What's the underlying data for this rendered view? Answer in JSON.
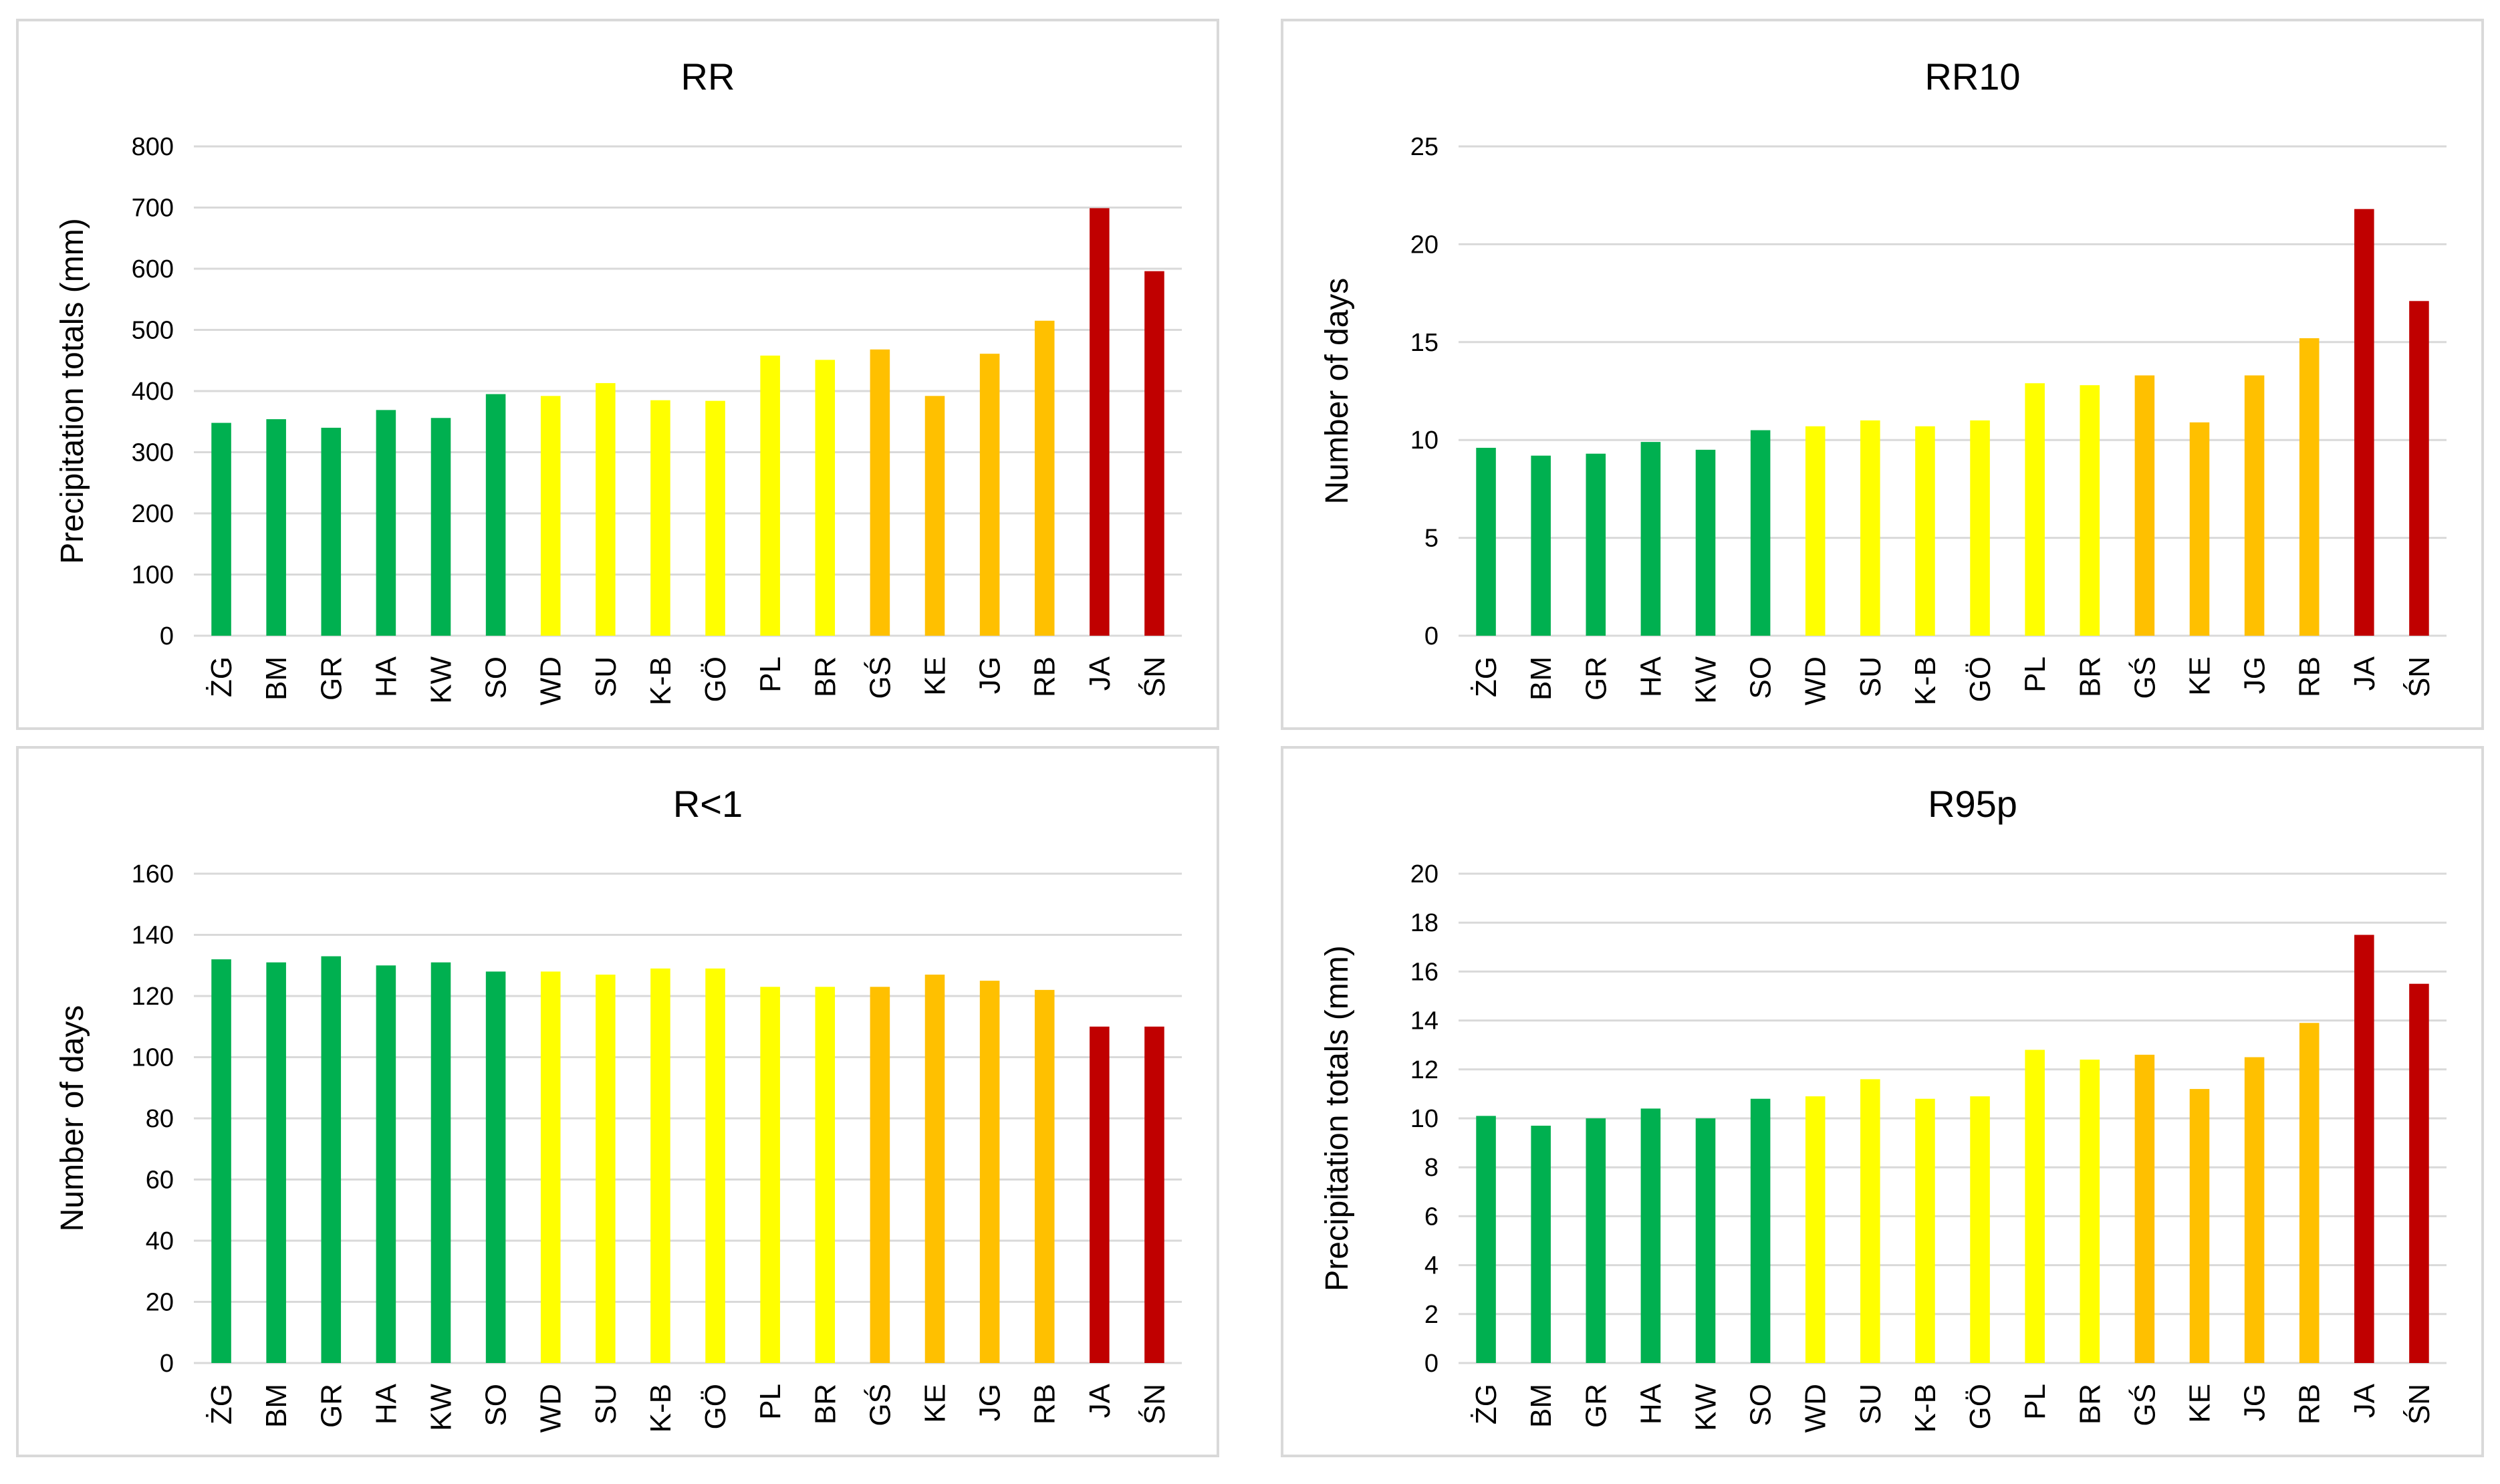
{
  "chart_data": [
    {
      "type": "bar",
      "title": "RR",
      "xlabel": "",
      "ylabel": "Precipitation totals (mm)",
      "ylim": [
        0,
        800
      ],
      "yticks": [
        0,
        100,
        200,
        300,
        400,
        500,
        600,
        700,
        800
      ],
      "ytick_labels": [
        "0",
        "100",
        "200",
        "300",
        "400",
        "500",
        "600",
        "700",
        "800"
      ],
      "categories": [
        "ŻG",
        "BM",
        "GR",
        "HA",
        "KW",
        "SO",
        "WD",
        "SU",
        "K-B",
        "GÖ",
        "PL",
        "BR",
        "GŚ",
        "KE",
        "JG",
        "RB",
        "JA",
        "ŚN"
      ],
      "values": [
        348,
        354,
        340,
        369,
        356,
        395,
        392,
        413,
        385,
        384,
        458,
        451,
        468,
        392,
        461,
        515,
        699,
        596
      ],
      "colors": [
        "#00b050",
        "#00b050",
        "#00b050",
        "#00b050",
        "#00b050",
        "#00b050",
        "#ffff00",
        "#ffff00",
        "#ffff00",
        "#ffff00",
        "#ffff00",
        "#ffff00",
        "#ffc000",
        "#ffc000",
        "#ffc000",
        "#ffc000",
        "#c00000",
        "#c00000"
      ]
    },
    {
      "type": "bar",
      "title": "RR10",
      "xlabel": "",
      "ylabel": "Number of days",
      "ylim": [
        0,
        25
      ],
      "yticks": [
        0,
        5,
        10,
        15,
        20,
        25
      ],
      "ytick_labels": [
        "0",
        "5",
        "10",
        "15",
        "20",
        "25"
      ],
      "categories": [
        "ŻG",
        "BM",
        "GR",
        "HA",
        "KW",
        "SO",
        "WD",
        "SU",
        "K-B",
        "GÖ",
        "PL",
        "BR",
        "GŚ",
        "KE",
        "JG",
        "RB",
        "JA",
        "ŚN"
      ],
      "values": [
        9.6,
        9.2,
        9.3,
        9.9,
        9.5,
        10.5,
        10.7,
        11.0,
        10.7,
        11.0,
        12.9,
        12.8,
        13.3,
        10.9,
        13.3,
        15.2,
        21.8,
        17.1
      ],
      "colors": [
        "#00b050",
        "#00b050",
        "#00b050",
        "#00b050",
        "#00b050",
        "#00b050",
        "#ffff00",
        "#ffff00",
        "#ffff00",
        "#ffff00",
        "#ffff00",
        "#ffff00",
        "#ffc000",
        "#ffc000",
        "#ffc000",
        "#ffc000",
        "#c00000",
        "#c00000"
      ]
    },
    {
      "type": "bar",
      "title": "R<1",
      "xlabel": "",
      "ylabel": "Number of days",
      "ylim": [
        0,
        160
      ],
      "yticks": [
        0,
        20,
        40,
        60,
        80,
        100,
        120,
        140,
        160
      ],
      "ytick_labels": [
        "0",
        "20",
        "40",
        "60",
        "80",
        "100",
        "120",
        "140",
        "160"
      ],
      "categories": [
        "ŻG",
        "BM",
        "GR",
        "HA",
        "KW",
        "SO",
        "WD",
        "SU",
        "K-B",
        "GÖ",
        "PL",
        "BR",
        "GŚ",
        "KE",
        "JG",
        "RB",
        "JA",
        "ŚN"
      ],
      "values": [
        132,
        131,
        133,
        130,
        131,
        128,
        128,
        127,
        129,
        129,
        123,
        123,
        123,
        127,
        125,
        122,
        110,
        110
      ],
      "colors": [
        "#00b050",
        "#00b050",
        "#00b050",
        "#00b050",
        "#00b050",
        "#00b050",
        "#ffff00",
        "#ffff00",
        "#ffff00",
        "#ffff00",
        "#ffff00",
        "#ffff00",
        "#ffc000",
        "#ffc000",
        "#ffc000",
        "#ffc000",
        "#c00000",
        "#c00000"
      ]
    },
    {
      "type": "bar",
      "title": "R95p",
      "xlabel": "",
      "ylabel": "Precipitation totals (mm)",
      "ylim": [
        0,
        20
      ],
      "yticks": [
        0,
        2,
        4,
        6,
        8,
        10,
        12,
        14,
        16,
        18,
        20
      ],
      "ytick_labels": [
        "0",
        "2",
        "4",
        "6",
        "8",
        "10",
        "12",
        "14",
        "16",
        "18",
        "20"
      ],
      "categories": [
        "ŻG",
        "BM",
        "GR",
        "HA",
        "KW",
        "SO",
        "WD",
        "SU",
        "K-B",
        "GÖ",
        "PL",
        "BR",
        "GŚ",
        "KE",
        "JG",
        "RB",
        "JA",
        "ŚN"
      ],
      "values": [
        10.1,
        9.7,
        10.0,
        10.4,
        10.0,
        10.8,
        10.9,
        11.6,
        10.8,
        10.9,
        12.8,
        12.4,
        12.6,
        11.2,
        12.5,
        13.9,
        17.5,
        15.5
      ],
      "colors": [
        "#00b050",
        "#00b050",
        "#00b050",
        "#00b050",
        "#00b050",
        "#00b050",
        "#ffff00",
        "#ffff00",
        "#ffff00",
        "#ffff00",
        "#ffff00",
        "#ffff00",
        "#ffc000",
        "#ffc000",
        "#ffc000",
        "#ffc000",
        "#c00000",
        "#c00000"
      ]
    }
  ],
  "style": {
    "gridline_color": "#d9d9d9",
    "text_color": "#000000"
  }
}
